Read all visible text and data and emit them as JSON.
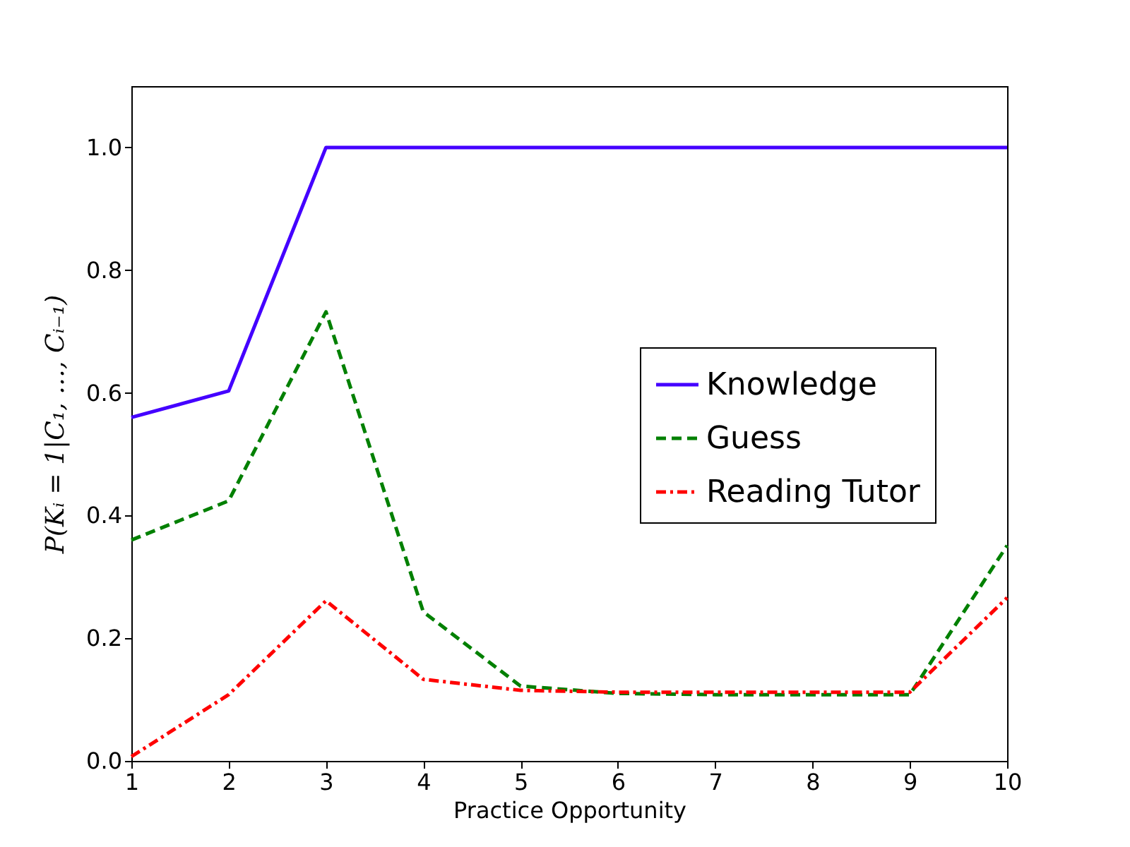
{
  "chart_data": {
    "type": "line",
    "xlabel": "Practice Opportunity",
    "ylabel": "P(Kᵢ = 1|C₁, …, Cᵢ₋₁)",
    "x": [
      1,
      2,
      3,
      4,
      5,
      6,
      7,
      8,
      9,
      10
    ],
    "series": [
      {
        "name": "Knowledge",
        "color": "#4400ff",
        "line_style": "solid",
        "values": [
          0.56,
          0.603,
          1.0,
          1.0,
          1.0,
          1.0,
          1.0,
          1.0,
          1.0,
          1.0
        ]
      },
      {
        "name": "Guess",
        "color": "#008000",
        "line_style": "dashed",
        "values": [
          0.36,
          0.424,
          0.732,
          0.243,
          0.122,
          0.11,
          0.108,
          0.108,
          0.108,
          0.351
        ]
      },
      {
        "name": "Reading Tutor",
        "color": "#ff0000",
        "line_style": "dashdot",
        "values": [
          0.007,
          0.108,
          0.261,
          0.133,
          0.115,
          0.112,
          0.112,
          0.112,
          0.112,
          0.266
        ]
      }
    ],
    "xlim": [
      1,
      10
    ],
    "xticks": [
      1,
      2,
      3,
      4,
      5,
      6,
      7,
      8,
      9,
      10
    ],
    "ylim": [
      0,
      1.1
    ],
    "yticks": [
      {
        "value": 0,
        "label": "0.0"
      },
      {
        "value": 0.2,
        "label": "0.2"
      },
      {
        "value": 0.4,
        "label": "0.4"
      },
      {
        "value": 0.6,
        "label": "0.6"
      },
      {
        "value": 0.8,
        "label": "0.8"
      },
      {
        "value": 1.0,
        "label": "1.0"
      }
    ],
    "legend": "right",
    "grid": false,
    "marker": "none"
  }
}
